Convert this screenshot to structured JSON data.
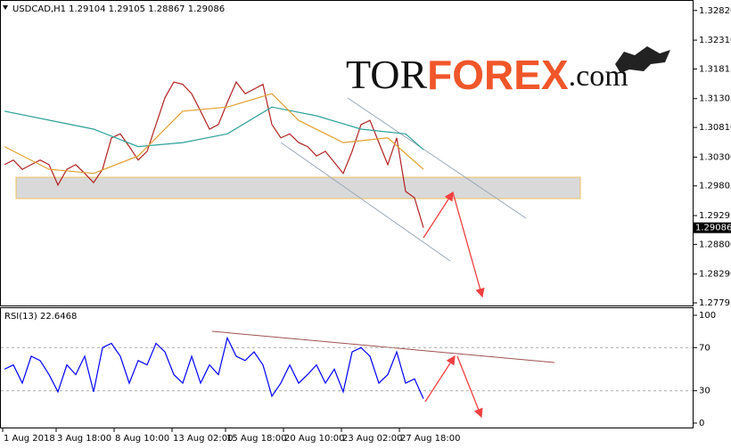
{
  "logo": {
    "parts": [
      "TOR",
      "FOREX",
      ".com"
    ]
  },
  "chart_data": [
    {
      "type": "line",
      "title": "USDCAD,H1  1.29104 1.29105 1.28867 1.29086",
      "ylim": [
        1.2775,
        1.33
      ],
      "yticks": [
        {
          "value": 1.3282,
          "label": "1.32820"
        },
        {
          "value": 1.3231,
          "label": "1.32310"
        },
        {
          "value": 1.31815,
          "label": "1.31815"
        },
        {
          "value": 1.31305,
          "label": "1.31305"
        },
        {
          "value": 1.3081,
          "label": "1.30810"
        },
        {
          "value": 1.303,
          "label": "1.30300"
        },
        {
          "value": 1.29805,
          "label": "1.29805"
        },
        {
          "value": 1.29295,
          "label": "1.29295"
        },
        {
          "value": 1.288,
          "label": "1.28800"
        },
        {
          "value": 1.2829,
          "label": "1.28290"
        },
        {
          "value": 1.27795,
          "label": "1.27795"
        }
      ],
      "xlim": [
        0,
        77
      ],
      "xticks": [
        {
          "value": 0,
          "label": "1 Aug 2018"
        },
        {
          "value": 6,
          "label": "3 Aug 18:00"
        },
        {
          "value": 12.5,
          "label": "8 Aug 10:00"
        },
        {
          "value": 19,
          "label": "13 Aug 02:00"
        },
        {
          "value": 25,
          "label": "15 Aug 18:00"
        },
        {
          "value": 31.5,
          "label": "20 Aug 10:00"
        },
        {
          "value": 38,
          "label": "23 Aug 02:00"
        },
        {
          "value": 44.5,
          "label": "27 Aug 18:00"
        }
      ],
      "series": [
        {
          "color": "#b22222",
          "values": [
            1.3017,
            1.3025,
            1.3009,
            1.3017,
            1.3025,
            1.3017,
            1.2982,
            1.3009,
            1.3017,
            1.3002,
            1.2986,
            1.3009,
            1.3063,
            1.307,
            1.3048,
            1.3025,
            1.304,
            1.3086,
            1.3132,
            1.3159,
            1.3155,
            1.3139,
            1.3109,
            1.3078,
            1.3086,
            1.3124,
            1.3159,
            1.3139,
            1.3147,
            1.3155,
            1.3086,
            1.3063,
            1.307,
            1.3055,
            1.3048,
            1.3032,
            1.304,
            1.3021,
            1.3002,
            1.304,
            1.3086,
            1.3093,
            1.3055,
            1.3017,
            1.3063,
            1.2971,
            1.296,
            1.29086
          ]
        },
        {
          "color": "#2aa198",
          "x": [
            0,
            10,
            15,
            20,
            25,
            30,
            35,
            40,
            45,
            47
          ],
          "values": [
            1.3109,
            1.3078,
            1.3048,
            1.3055,
            1.307,
            1.3116,
            1.3101,
            1.3078,
            1.307,
            1.3043
          ]
        },
        {
          "color": "#e0a030",
          "x": [
            0,
            5,
            10,
            15,
            20,
            25,
            30,
            33,
            38,
            43,
            47
          ],
          "values": [
            1.3048,
            1.3009,
            1.3002,
            1.3032,
            1.3109,
            1.3116,
            1.3139,
            1.3093,
            1.3055,
            1.3063,
            1.3009
          ]
        }
      ]
    },
    {
      "type": "line",
      "title": "RSI(13) 22.6468",
      "ylim": [
        0,
        100
      ],
      "yticks": [
        100,
        70,
        30,
        0
      ],
      "grid_levels": [
        70,
        30
      ],
      "series": [
        {
          "color": "#0000ff",
          "values": [
            50,
            54,
            37,
            62,
            58,
            45,
            29,
            54,
            45,
            62,
            29,
            70,
            74,
            62,
            37,
            58,
            54,
            74,
            66,
            45,
            37,
            62,
            37,
            54,
            45,
            79,
            62,
            58,
            66,
            54,
            25,
            37,
            54,
            37,
            45,
            54,
            37,
            50,
            29,
            66,
            70,
            62,
            37,
            45,
            66,
            37,
            41,
            22.6468
          ]
        }
      ]
    }
  ]
}
